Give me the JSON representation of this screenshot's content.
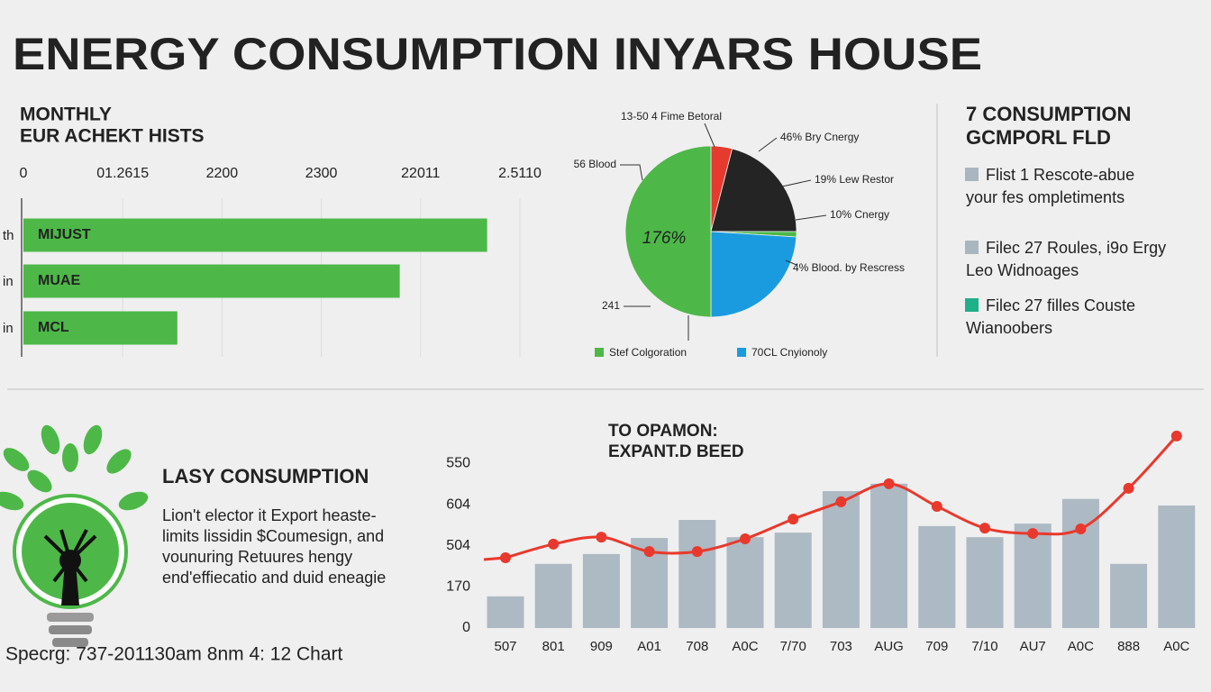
{
  "title": "ENERGY CONSUMPTION INYARS HOUSE",
  "chart_data": [
    {
      "type": "bar",
      "orientation": "horizontal",
      "title": [
        "MONTHLY",
        "EUR ACHEKT HISTS"
      ],
      "categories": [
        "MIJUST",
        "MUAE",
        "MCL"
      ],
      "row_labels": [
        "th",
        "in",
        "in"
      ],
      "values": [
        4.67,
        3.79,
        1.55
      ],
      "color": "#4db848",
      "xlim": [
        0,
        5
      ],
      "xticks": [
        0,
        {
          "value": 1,
          "label": "01.2615"
        },
        {
          "value": 2,
          "label": "2200"
        },
        {
          "value": 3,
          "label": "2300"
        },
        {
          "value": 4,
          "label": "22011"
        },
        {
          "value": 5,
          "label": "2.5110"
        }
      ],
      "grid": true
    },
    {
      "type": "pie",
      "values": [
        4,
        21,
        1,
        24,
        50
      ],
      "colors": [
        "#e53a2e",
        "#242424",
        "#4db848",
        "#1a9be0",
        "#4db848"
      ],
      "center_label": "176%",
      "annotations": [
        "13-50 4 Fime Betoral",
        "46% Bry Cnergy",
        "19% Lew Restor",
        "10% Cnergy",
        "4% Blood. by Rescress",
        "56 Blood",
        "241"
      ],
      "legend": [
        {
          "name": "Stef Colgoration",
          "color": "#4db848"
        },
        {
          "name": "70CL Cnyionoly",
          "color": "#1a9be0"
        }
      ]
    },
    {
      "type": "combo",
      "title": [
        "TO OPAMON:",
        "EXPANT.D BEED"
      ],
      "categories": [
        "507",
        "801",
        "909",
        "A01",
        "708",
        "A0C",
        "7/70",
        "703",
        "AUG",
        "709",
        "7/10",
        "AU7",
        "A0C",
        "888",
        "A0C"
      ],
      "series": [
        {
          "type": "bar",
          "color": "#adb9c3",
          "values": [
            0.77,
            1.56,
            1.8,
            2.19,
            2.63,
            2.21,
            2.32,
            3.33,
            3.51,
            2.48,
            2.21,
            2.54,
            3.14,
            1.56,
            2.98
          ]
        },
        {
          "type": "line",
          "color": "#e8392c",
          "values": [
            1.71,
            2.04,
            2.21,
            1.86,
            1.86,
            2.17,
            2.65,
            3.07,
            3.51,
            2.96,
            2.43,
            2.3,
            2.41,
            3.4,
            4.67
          ]
        }
      ],
      "ylim": [
        0,
        4.8
      ],
      "yticks": [
        0,
        {
          "value": 1,
          "label": "170"
        },
        {
          "value": 2,
          "label": "504"
        },
        {
          "value": 3,
          "label": "604"
        },
        {
          "value": 4,
          "label": "550"
        }
      ]
    }
  ],
  "sidebar": {
    "heading": [
      "7 CONSUMPTION",
      "GCMPORL FLD"
    ],
    "items": [
      {
        "lines": [
          "Flist 1 Rescote-abue",
          "your fes ompletiments"
        ],
        "color": "#a9b6c0"
      },
      {
        "lines": [
          "Filec 27 Roules, i9o Ergy",
          "Leo Widnoages"
        ],
        "color": "#a9b6c0"
      },
      {
        "lines": [
          "Filec 27 filles Couste",
          "Wianoobers"
        ],
        "color": "#1fb08a"
      }
    ]
  },
  "feature": {
    "heading": "LASY CONSUMPTION",
    "lines": [
      "Lion't elector it Export heaste-",
      "limits lissidin $Coumesign, and",
      "vounuring Retuures hengy",
      "end'effiecatio and duid eneagie"
    ]
  },
  "footer": "Specrg: 737-201130am 8nm 4: 12 Chart"
}
